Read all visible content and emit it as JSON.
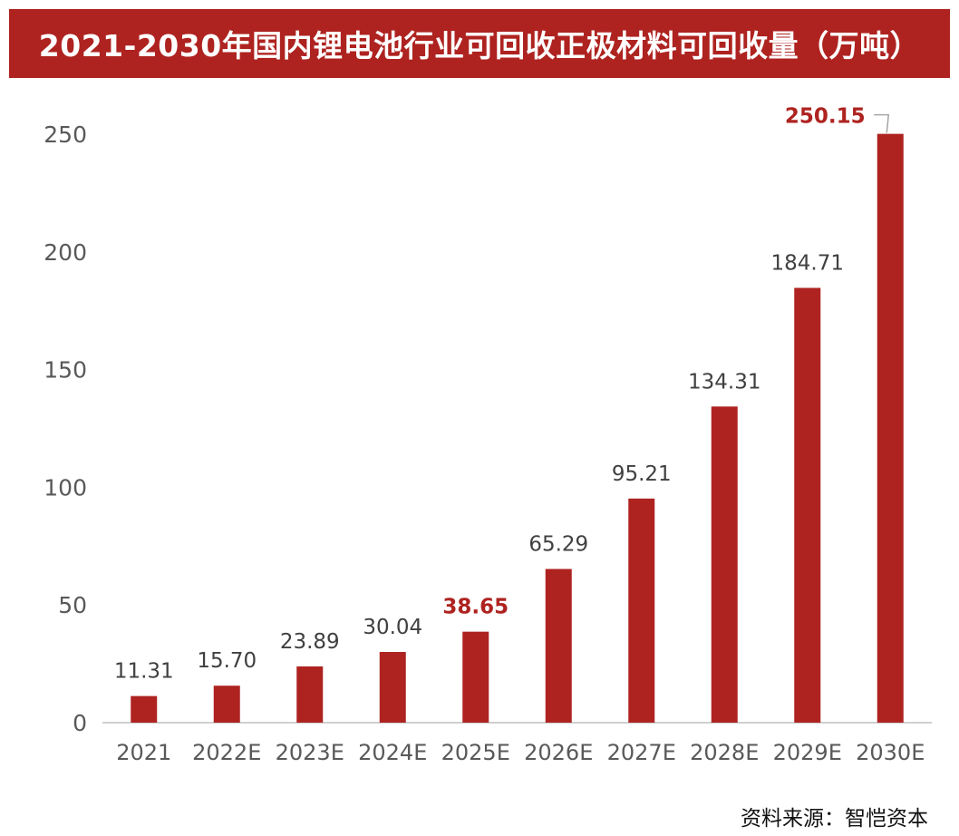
{
  "title": "2021-2030年国内锂电池行业可回收正极材料可回收量（万吨）",
  "source": "资料来源：智恺资本",
  "colors": {
    "bar": "#ae2320",
    "highlight_label": "#ae2320",
    "label": "#404040",
    "axis_text": "#595959",
    "axis_line": "#bfbfbf"
  },
  "chart_data": {
    "type": "bar",
    "title": "2021-2030年国内锂电池行业可回收正极材料可回收量（万吨）",
    "xlabel": "",
    "ylabel": "",
    "categories": [
      "2021",
      "2022E",
      "2023E",
      "2024E",
      "2025E",
      "2026E",
      "2027E",
      "2028E",
      "2029E",
      "2030E"
    ],
    "values": [
      11.31,
      15.7,
      23.89,
      30.04,
      38.65,
      65.29,
      95.21,
      134.31,
      184.71,
      250.15
    ],
    "data_labels": [
      "11.31",
      "15.70",
      "23.89",
      "30.04",
      "38.65",
      "65.29",
      "95.21",
      "134.31",
      "184.71",
      "250.15"
    ],
    "highlighted_labels": [
      "2025E",
      "2030E"
    ],
    "yticks": [
      0,
      50,
      100,
      150,
      200,
      250
    ],
    "ylim": [
      0,
      250
    ],
    "grid": false,
    "legend": "none"
  }
}
